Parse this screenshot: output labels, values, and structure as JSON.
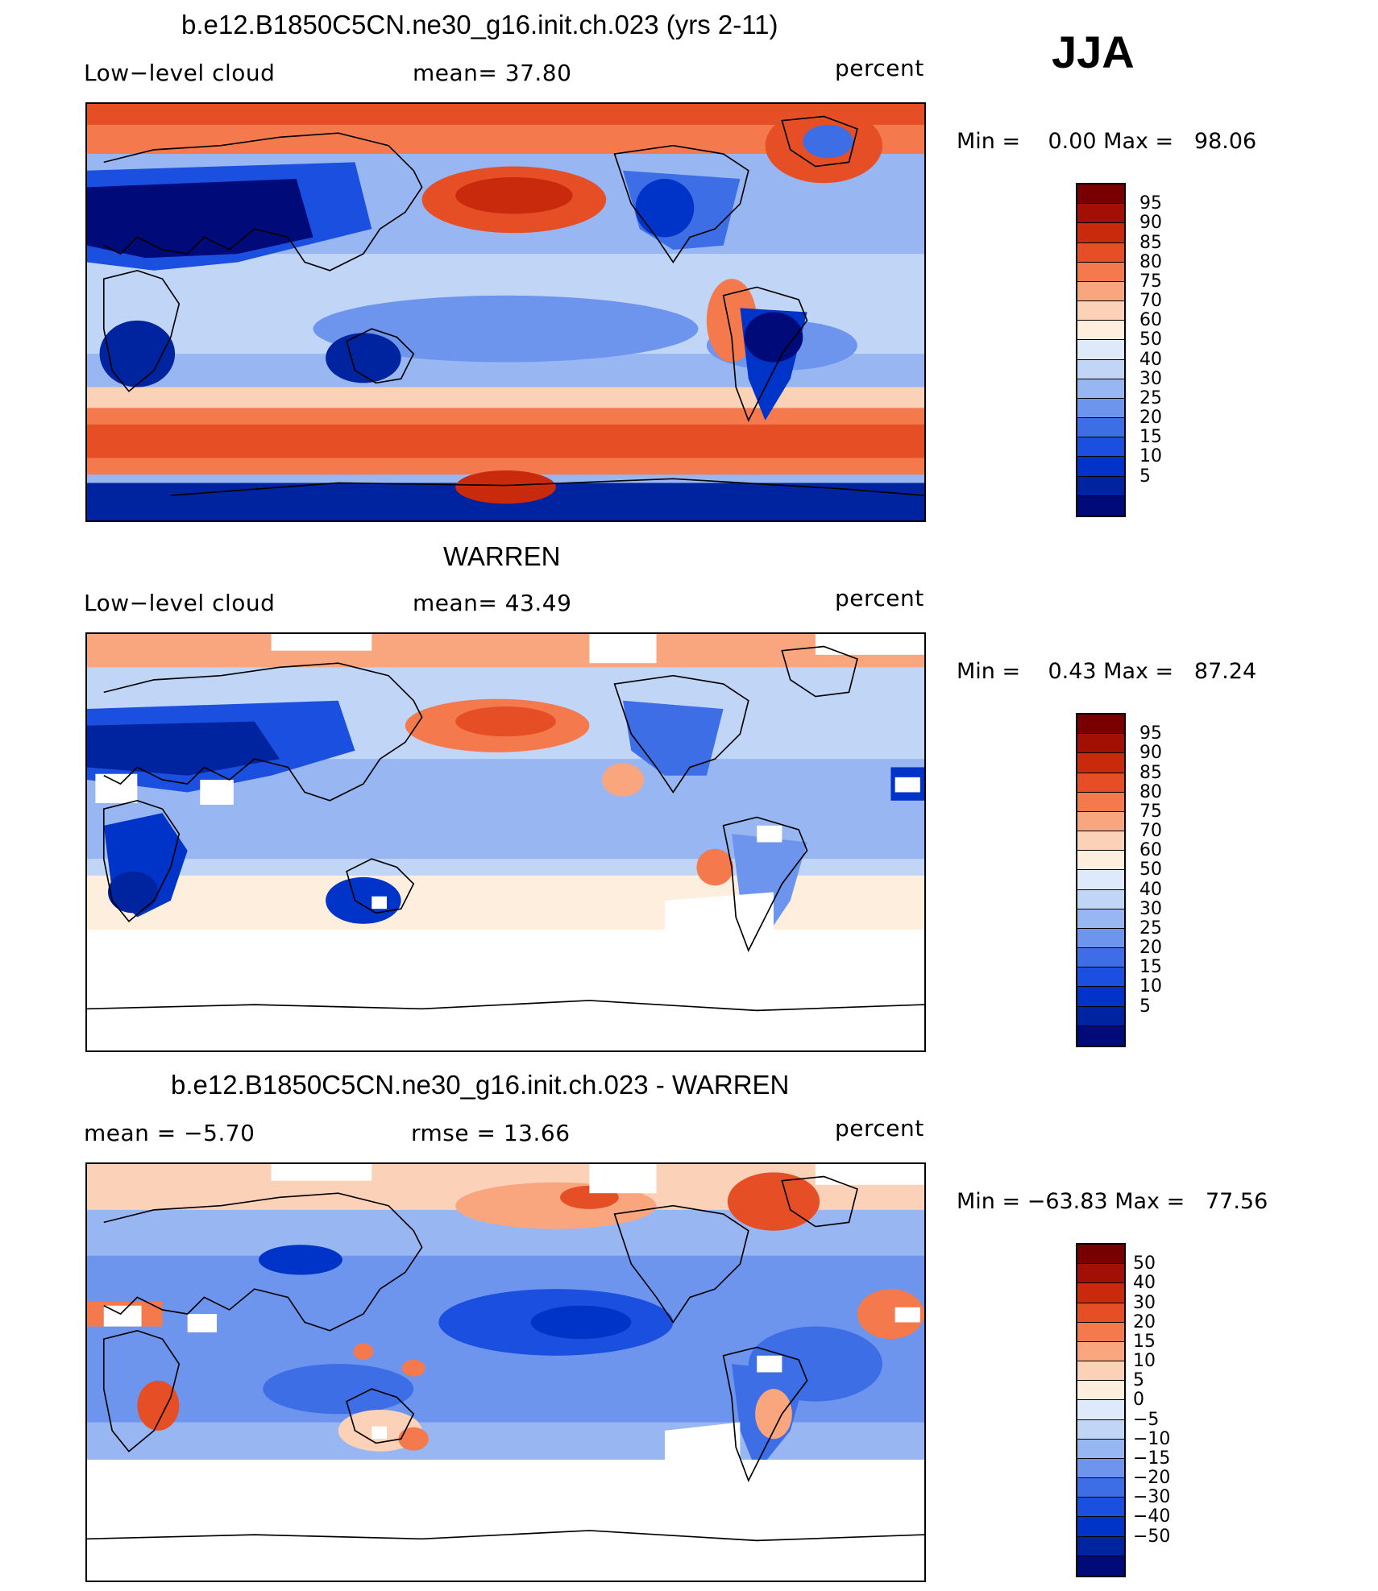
{
  "season": "JJA",
  "colors": {
    "levels_abs": [
      "#000a78",
      "#00249f",
      "#0033c8",
      "#1a4fe0",
      "#3d6ee6",
      "#6e95ee",
      "#98b6f2",
      "#c1d5f7",
      "#deeafb",
      "#fdeede",
      "#fbd2b8",
      "#f9a67e",
      "#f47a4d",
      "#e64f25",
      "#c82a0b",
      "#a20f04",
      "#780000"
    ],
    "levels_diff": [
      "#000a78",
      "#00249f",
      "#0033c8",
      "#1a4fe0",
      "#3d6ee6",
      "#6e95ee",
      "#98b6f2",
      "#c1d5f7",
      "#deeafb",
      "#fdeede",
      "#fbd2b8",
      "#f9a67e",
      "#f47a4d",
      "#e64f25",
      "#c82a0b",
      "#a20f04",
      "#780000"
    ],
    "ocean_mid": "#98b6f2",
    "missing": "#ffffff"
  },
  "panels": [
    {
      "title": "b.e12.B1850C5CN.ne30_g16.init.ch.023 (yrs 2-11)",
      "left_label": "Low−level cloud",
      "center_label": "mean=   37.80",
      "right_label": "percent",
      "min_max": "Min =    0.00 Max =   98.06",
      "colorbar_labels": [
        "95",
        "90",
        "85",
        "80",
        "75",
        "70",
        "60",
        "50",
        "40",
        "30",
        "25",
        "20",
        "15",
        "10",
        "5"
      ]
    },
    {
      "title": "WARREN",
      "left_label": "Low−level cloud",
      "center_label": "mean=   43.49",
      "right_label": "percent",
      "min_max": "Min =    0.43 Max =   87.24",
      "colorbar_labels": [
        "95",
        "90",
        "85",
        "80",
        "75",
        "70",
        "60",
        "50",
        "40",
        "30",
        "25",
        "20",
        "15",
        "10",
        "5"
      ]
    },
    {
      "title": "b.e12.B1850C5CN.ne30_g16.init.ch.023 - WARREN",
      "left_label": "mean =   −5.70",
      "center_label": "rmse =   13.66",
      "right_label": "percent",
      "min_max": "Min = −63.83 Max =   77.56",
      "colorbar_labels": [
        "50",
        "40",
        "30",
        "20",
        "15",
        "10",
        "5",
        "0",
        "−5",
        "−10",
        "−15",
        "−20",
        "−30",
        "−40",
        "−50"
      ]
    }
  ]
}
